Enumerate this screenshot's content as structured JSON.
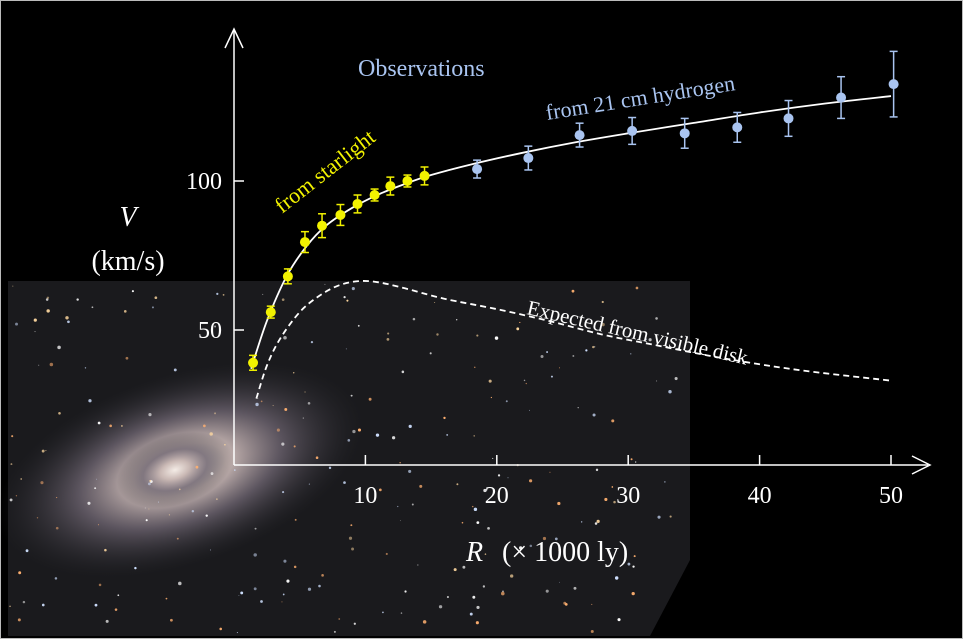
{
  "chart_data": {
    "type": "scatter",
    "title": "",
    "xlabel_var": "R",
    "xlabel_unit": "(× 1000 ly)",
    "ylabel_var": "V",
    "ylabel_unit": "(km/s)",
    "xlim": [
      0,
      52
    ],
    "ylim": [
      5,
      150
    ],
    "x_ticks": [
      10,
      20,
      30,
      40,
      50
    ],
    "y_ticks": [
      50,
      100
    ],
    "grid": false,
    "background_image": "spiral galaxy",
    "annotations": {
      "observations": "Observations",
      "starlight": "from  starlight",
      "hydrogen": "from 21 cm hydrogen",
      "expected": "Expected from visible disk"
    },
    "colors": {
      "starlight": "#f2f200",
      "hydrogen": "#a9c4f0",
      "fit": "#ffffff",
      "expected": "#ffffff"
    },
    "series": [
      {
        "name": "from  starlight",
        "x": [
          1.45,
          2.8,
          4.1,
          5.4,
          6.7,
          8.1,
          9.4,
          10.7,
          11.9,
          13.2,
          14.5
        ],
        "y": [
          39,
          56,
          68,
          79.5,
          85,
          88.6,
          92.3,
          95.3,
          98.3,
          100,
          101.7
        ],
        "err": [
          2.5,
          2,
          2.5,
          3.5,
          4,
          3.5,
          3,
          2,
          3,
          2,
          3
        ]
      },
      {
        "name": "from 21 cm hydrogen",
        "x": [
          18.5,
          22.4,
          26.3,
          30.3,
          34.3,
          38.3,
          42.2,
          46.2,
          50.2
        ],
        "y": [
          104,
          107.7,
          115.4,
          116.8,
          116,
          118,
          121,
          128,
          132.5
        ],
        "err": [
          3,
          4,
          4,
          4.5,
          5,
          5,
          6,
          7,
          11
        ]
      }
    ],
    "fit_curve": {
      "x": [
        1.3,
        2.5,
        4,
        5.5,
        7,
        9,
        11,
        13,
        15,
        18,
        22,
        26,
        30,
        35,
        40,
        45,
        50
      ],
      "y": [
        37,
        53,
        68,
        78,
        85,
        91,
        95.5,
        99,
        102,
        105.5,
        109.5,
        113,
        116,
        119.5,
        123,
        126,
        128.5
      ]
    },
    "expected_curve": {
      "x": [
        1.7,
        2.5,
        3.5,
        5,
        6.5,
        8,
        9.5,
        11,
        13,
        16,
        20,
        24,
        28,
        32,
        36,
        40,
        44,
        50
      ],
      "y": [
        27,
        38,
        47,
        56,
        61.5,
        65,
        66.4,
        66,
        64,
        60.5,
        57,
        53,
        48.5,
        45,
        41.5,
        38.5,
        36,
        33
      ]
    }
  }
}
